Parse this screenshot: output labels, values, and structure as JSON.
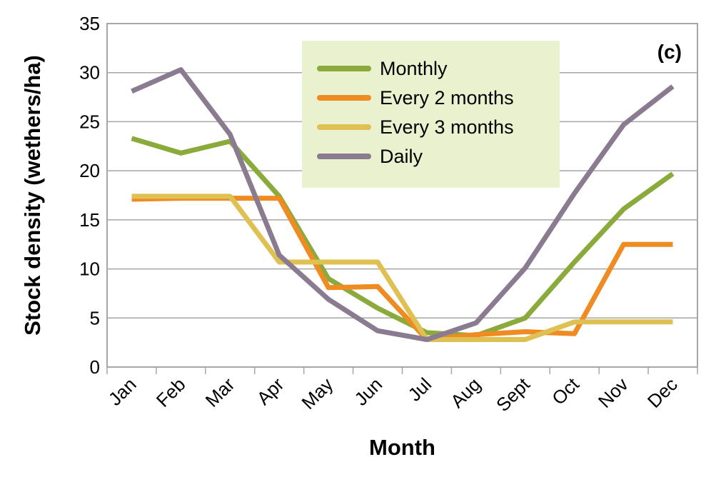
{
  "chart_data": {
    "type": "line",
    "panel_label": "(c)",
    "xlabel": "Month",
    "ylabel": "Stock density (wethers/ha)",
    "categories": [
      "Jan",
      "Feb",
      "Mar",
      "Apr",
      "May",
      "Jun",
      "Jul",
      "Aug",
      "Sept",
      "Oct",
      "Nov",
      "Dec"
    ],
    "ylim": [
      0,
      35
    ],
    "yticks": [
      "0",
      "5",
      "10",
      "15",
      "20",
      "25",
      "30",
      "35"
    ],
    "grid": true,
    "legend_position": "top-center",
    "series": [
      {
        "name": "Monthly",
        "color": "#8aab3c",
        "values": [
          23.3,
          21.8,
          23.0,
          17.4,
          9.0,
          6.0,
          3.5,
          3.2,
          5.0,
          10.7,
          16.1,
          19.7
        ]
      },
      {
        "name": "Every 2 months",
        "color": "#ee8c23",
        "values": [
          17.1,
          17.2,
          17.2,
          17.2,
          8.1,
          8.2,
          2.8,
          3.3,
          3.6,
          3.4,
          12.5,
          12.5
        ]
      },
      {
        "name": "Every 3 months",
        "color": "#dfc052",
        "values": [
          17.4,
          17.4,
          17.4,
          10.7,
          10.7,
          10.7,
          2.8,
          2.8,
          2.8,
          4.6,
          4.6,
          4.6
        ]
      },
      {
        "name": "Daily",
        "color": "#8b7b91",
        "values": [
          28.1,
          30.3,
          23.7,
          11.4,
          6.9,
          3.7,
          2.8,
          4.5,
          10.1,
          17.7,
          24.7,
          28.6
        ]
      }
    ]
  }
}
